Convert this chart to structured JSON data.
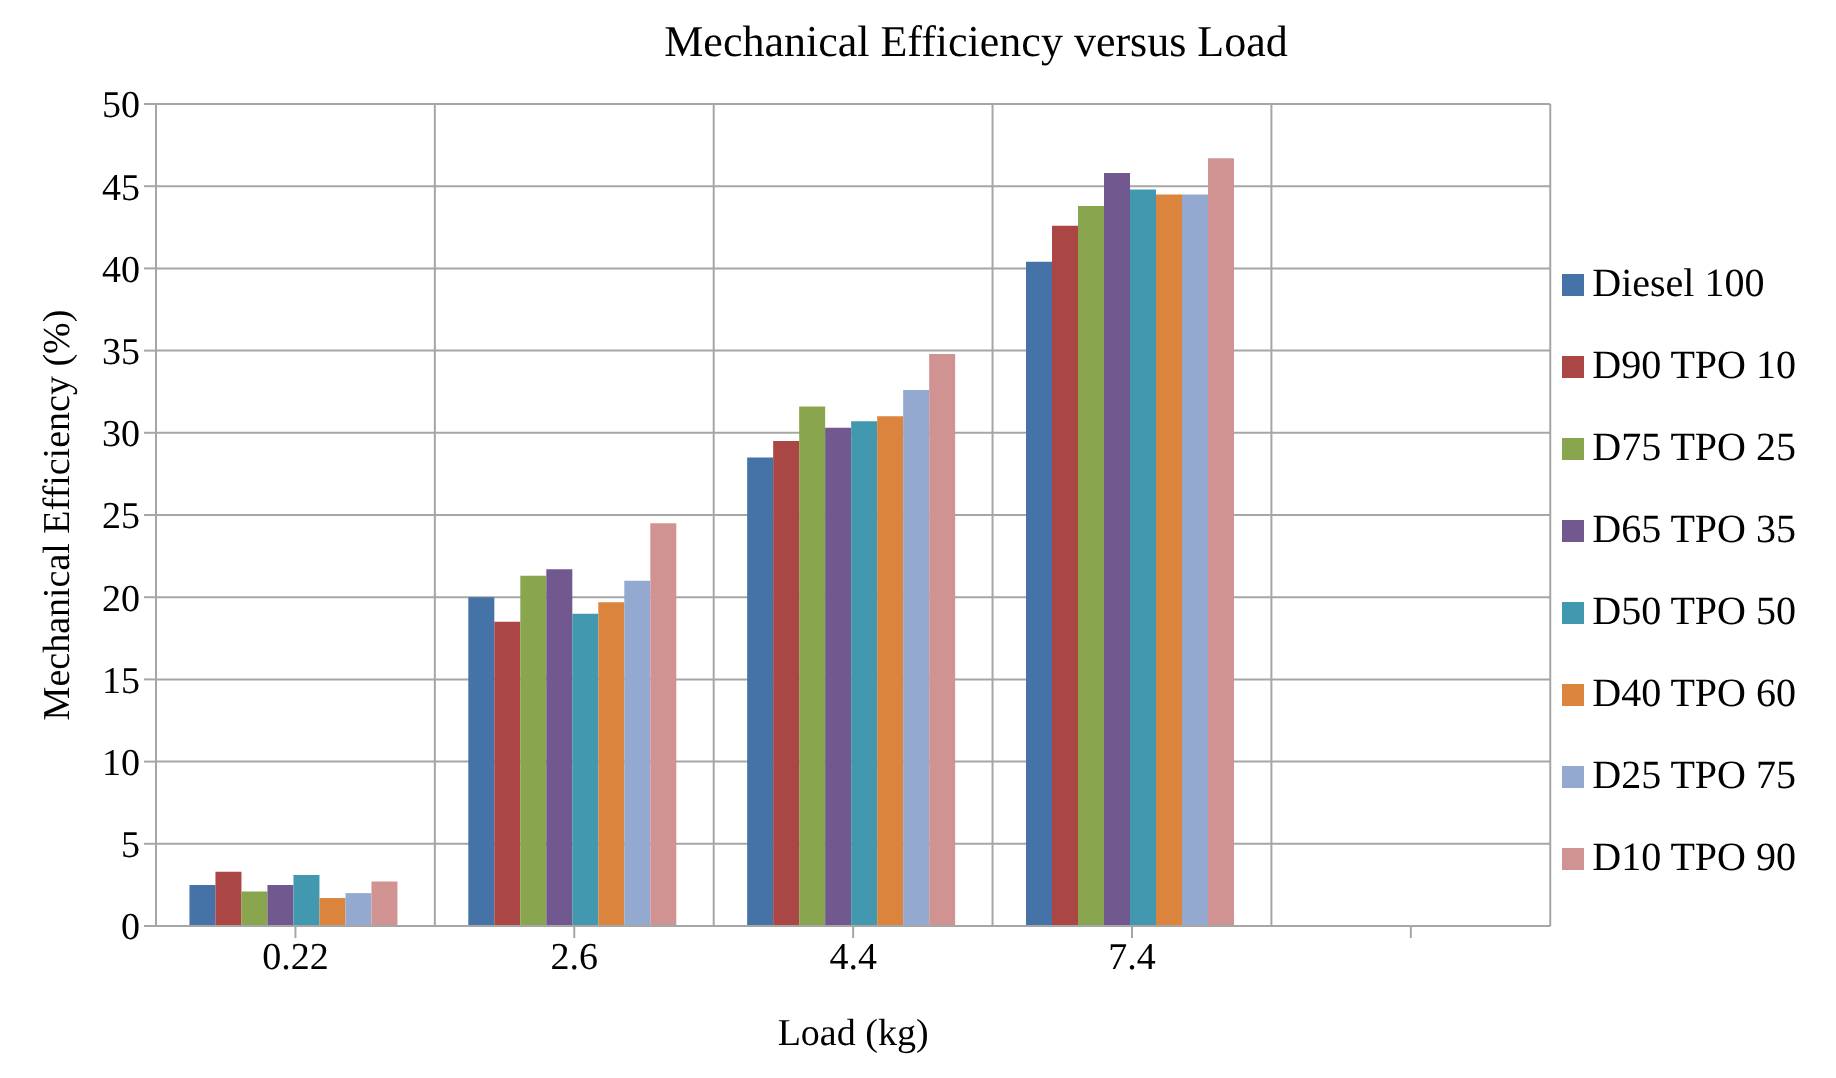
{
  "chart_data": {
    "type": "bar",
    "title": "Mechanical Efficiency versus Load",
    "xlabel": "Load (kg)",
    "ylabel": "Mechanical  Efficiency (%)",
    "categories": [
      "0.22",
      "2.6",
      "4.4",
      "7.4",
      null
    ],
    "series": [
      {
        "name": "Diesel 100",
        "color": "#4572a7",
        "values": [
          2.5,
          20.0,
          28.5,
          40.4,
          null
        ]
      },
      {
        "name": "D90 TPO 10",
        "color": "#aa4643",
        "values": [
          3.3,
          18.5,
          29.5,
          42.6,
          null
        ]
      },
      {
        "name": "D75 TPO 25",
        "color": "#89a54e",
        "values": [
          2.1,
          21.3,
          31.6,
          43.8,
          null
        ]
      },
      {
        "name": "D65 TPO 35",
        "color": "#71588f",
        "values": [
          2.5,
          21.7,
          30.3,
          45.8,
          null
        ]
      },
      {
        "name": "D50 TPO 50",
        "color": "#4198af",
        "values": [
          3.1,
          19.0,
          30.7,
          44.8,
          null
        ]
      },
      {
        "name": "D40 TPO 60",
        "color": "#db843d",
        "values": [
          1.7,
          19.7,
          31.0,
          44.5,
          null
        ]
      },
      {
        "name": "D25 TPO 75",
        "color": "#93a9cf",
        "values": [
          2.0,
          21.0,
          32.6,
          44.5,
          null
        ]
      },
      {
        "name": "D10 TPO 90",
        "color": "#d19392",
        "values": [
          2.7,
          24.5,
          34.8,
          46.7,
          null
        ]
      }
    ],
    "ylim": [
      0,
      50
    ],
    "yticks": [
      0,
      5,
      10,
      15,
      20,
      25,
      30,
      35,
      40,
      45,
      50
    ],
    "grid": true,
    "legend": "right"
  }
}
